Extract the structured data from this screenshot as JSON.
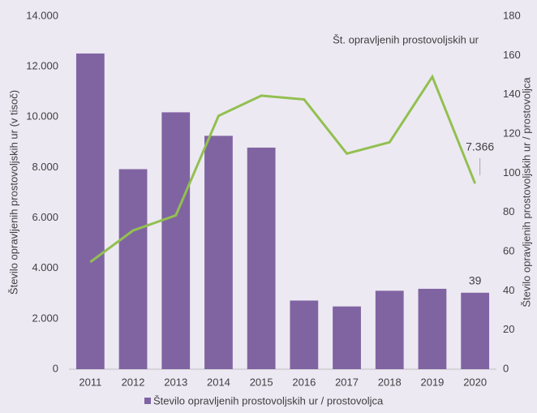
{
  "chart_data": {
    "type": "bar_line",
    "y_label": "Število opravljenih prostovoljskih ur (v tisoč)",
    "y2_label": "Število opravljenih prostovoljskih ur / prostovoljca",
    "categories": [
      "2011",
      "2012",
      "2013",
      "2014",
      "2015",
      "2016",
      "2017",
      "2018",
      "2019",
      "2020"
    ],
    "series": [
      {
        "name": "Število opravljenih prostovoljskih ur / prostovoljca",
        "type": "bar",
        "axis": "y2",
        "color": "#8064a2",
        "values": [
          161,
          102,
          131,
          119,
          113,
          35,
          32,
          40,
          41,
          39
        ],
        "value_labels": [
          null,
          null,
          null,
          null,
          null,
          null,
          null,
          null,
          null,
          "39"
        ]
      },
      {
        "name": "Št. opravljenih prostovoljskih ur",
        "type": "line",
        "axis": "y",
        "color": "#92c050",
        "values": [
          4250,
          5500,
          6100,
          10050,
          10850,
          10700,
          8550,
          9000,
          11600,
          7366
        ],
        "value_labels": [
          null,
          null,
          null,
          null,
          null,
          null,
          null,
          null,
          null,
          "7.366"
        ]
      }
    ],
    "ylim": [
      0,
      14000
    ],
    "yticks": [
      0,
      {
        "value": 2000,
        "label": "2.000"
      },
      {
        "value": 4000,
        "label": "4.000"
      },
      {
        "value": 6000,
        "label": "6.000"
      },
      {
        "value": 8000,
        "label": "8.000"
      },
      {
        "value": 10000,
        "label": "10.000"
      },
      {
        "value": 12000,
        "label": "12.000"
      },
      {
        "value": 14000,
        "label": "14.000"
      }
    ],
    "y2lim": [
      0,
      180
    ],
    "y2ticks": [
      0,
      20,
      40,
      60,
      80,
      100,
      120,
      140,
      160,
      180
    ],
    "grid": false
  }
}
